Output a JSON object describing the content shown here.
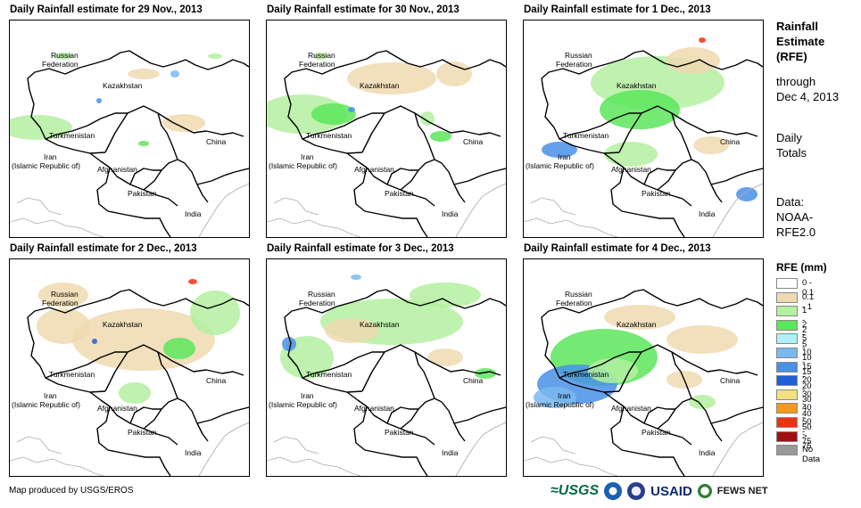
{
  "panels": [
    {
      "title": "Daily Rainfall estimate for 29 Nov., 2013"
    },
    {
      "title": "Daily Rainfall estimate for 30 Nov., 2013"
    },
    {
      "title": "Daily Rainfall estimate for 1 Dec., 2013"
    },
    {
      "title": "Daily Rainfall estimate for 2 Dec., 2013"
    },
    {
      "title": "Daily Rainfall estimate for 3 Dec., 2013"
    },
    {
      "title": "Daily Rainfall estimate for 4 Dec., 2013"
    }
  ],
  "map_labels": {
    "russia_1": "Russian",
    "russia_2": "Federation",
    "kazakhstan": "Kazakhstan",
    "turkmenistan": "Turkmenistan",
    "iran_1": "Iran",
    "iran_2": "(Islamic Republic of)",
    "afghanistan": "Afghanistan",
    "china": "China",
    "pakistan": "Pakistan",
    "india": "India"
  },
  "sidebar": {
    "title_1": "Rainfall",
    "title_2": "Estimate",
    "title_3": "(RFE)",
    "through_1": "through",
    "through_2": "Dec 4, 2013",
    "daily_1": "Daily",
    "daily_2": "Totals",
    "data_1": "Data:",
    "data_2": "NOAA-",
    "data_3": "RFE2.0"
  },
  "legend": {
    "title": "RFE (mm)",
    "items": [
      {
        "label": "0 - 0.1",
        "color": "#ffffff"
      },
      {
        "label": "0.1 - 1",
        "color": "#f0d9b0"
      },
      {
        "label": "1 - 2",
        "color": "#b3f0a0"
      },
      {
        "label": "2 - 5",
        "color": "#5ce65c"
      },
      {
        "label": "5 - 10",
        "color": "#b0f0f5"
      },
      {
        "label": "10 - 15",
        "color": "#7ab8f0"
      },
      {
        "label": "15 - 20",
        "color": "#4a90e8"
      },
      {
        "label": "20 - 30",
        "color": "#1f5fd6"
      },
      {
        "label": "30 - 40",
        "color": "#f5e080"
      },
      {
        "label": "40 - 50",
        "color": "#f59a1a"
      },
      {
        "label": "50 - 75",
        "color": "#ee3311"
      },
      {
        "label": "> 75",
        "color": "#a01010"
      },
      {
        "label": "No Data",
        "color": "#999999"
      }
    ]
  },
  "credit": "Map produced by USGS/EROS",
  "logos": {
    "usgs": "≈USGS",
    "usaid": "USAID",
    "fews": "FEWS NET"
  }
}
